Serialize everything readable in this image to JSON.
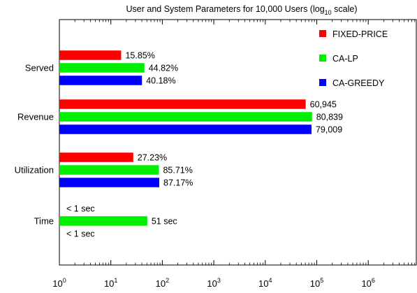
{
  "chart_data": {
    "type": "bar",
    "orientation": "horizontal",
    "title": "User and System Parameters for 10,000 Users (log",
    "title_subscript": "10",
    "title_suffix": " scale)",
    "xscale": "log",
    "xlim": [
      1,
      6000000
    ],
    "xticks": [
      {
        "value": 1,
        "base": "10",
        "exp": "0"
      },
      {
        "value": 10,
        "base": "10",
        "exp": "1"
      },
      {
        "value": 100,
        "base": "10",
        "exp": "2"
      },
      {
        "value": 1000,
        "base": "10",
        "exp": "3"
      },
      {
        "value": 10000,
        "base": "10",
        "exp": "4"
      },
      {
        "value": 100000,
        "base": "10",
        "exp": "5"
      },
      {
        "value": 1000000,
        "base": "10",
        "exp": "6"
      }
    ],
    "categories": [
      "Served",
      "Revenue",
      "Utilization",
      "Time"
    ],
    "series": [
      {
        "name": "FIXED-PRICE",
        "color": "#ff0000",
        "values": [
          15.85,
          60945,
          27.23,
          null
        ],
        "labels": [
          "15.85%",
          "60,945",
          "27.23%",
          "< 1 sec"
        ]
      },
      {
        "name": "CA-LP",
        "color": "#00ee00",
        "values": [
          44.82,
          80839,
          85.71,
          51
        ],
        "labels": [
          "44.82%",
          "80,839",
          "85.71%",
          "51 sec"
        ]
      },
      {
        "name": "CA-GREEDY",
        "color": "#0000ff",
        "values": [
          40.18,
          79009,
          87.17,
          null
        ],
        "labels": [
          "40.18%",
          "79,009",
          "87.17%",
          "< 1 sec"
        ]
      }
    ],
    "legend_position": "top-right",
    "grid": false
  }
}
